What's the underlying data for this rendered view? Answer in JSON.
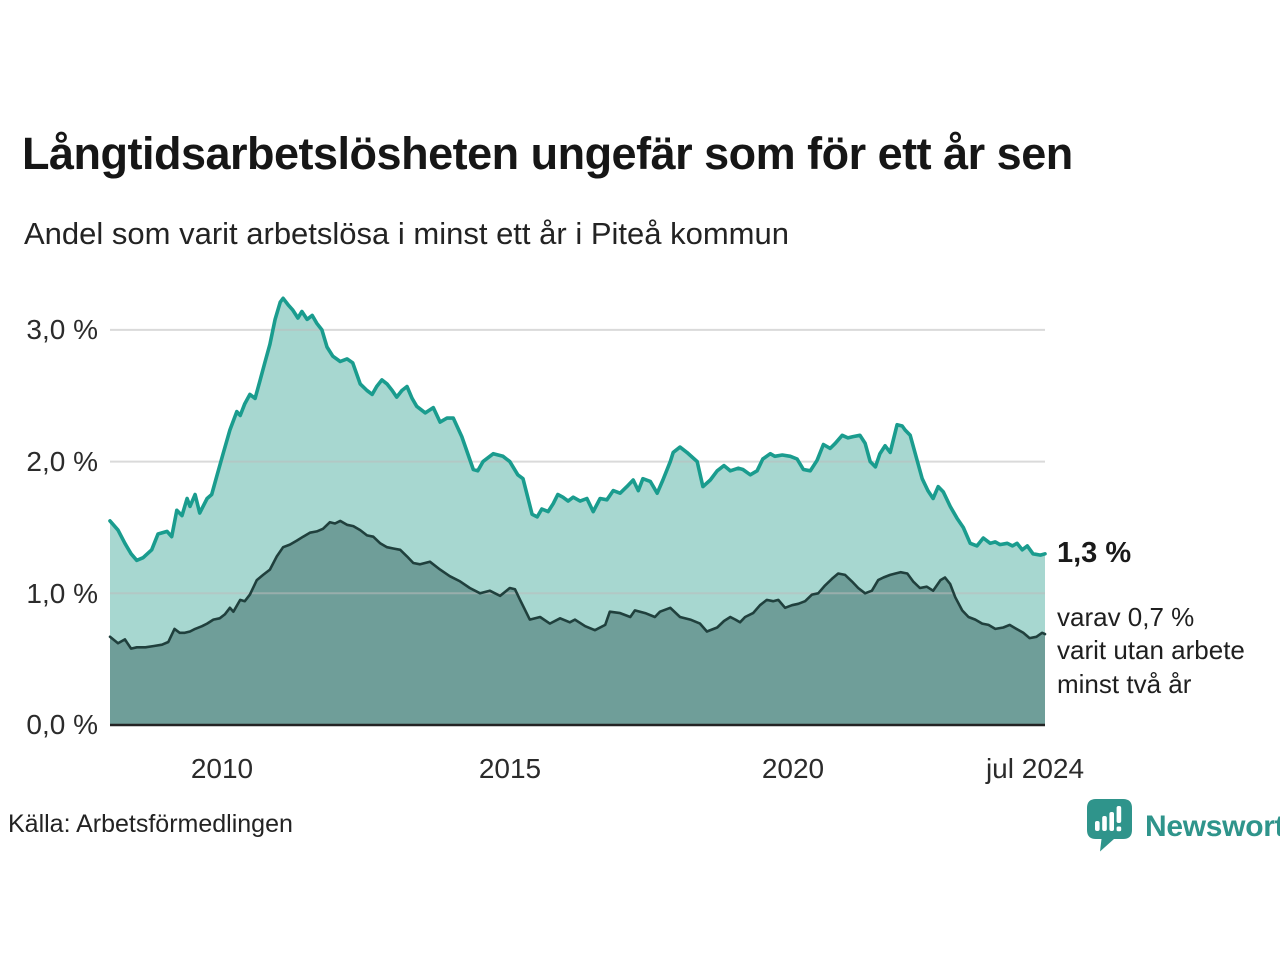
{
  "title": "Långtidsarbetslösheten ungefär som för ett år sen",
  "subtitle": "Andel som varit arbetslösa i minst ett år i Piteå kommun",
  "source": "Källa: Arbetsförmedlingen",
  "logo": {
    "text": "Newsworthy"
  },
  "annotation": {
    "value": "1,3 %",
    "line1": "varav 0,7 %",
    "line2": "varit utan arbete",
    "line3": "minst två år"
  },
  "colors": {
    "line_1yr": "#1a9c8e",
    "fill_1yr": "#a7d7d0",
    "line_2yr": "#20403d",
    "fill_2yr": "#6f9e99",
    "gridline": "#bbbbbb",
    "baseline": "#232323",
    "logo_teal": "#2f948b"
  },
  "chart_data": {
    "type": "area",
    "title": "Långtidsarbetslösheten ungefär som för ett år sen",
    "subtitle": "Andel som varit arbetslösa i minst ett år i Piteå kommun",
    "unit": "%",
    "x_axis": {
      "range": [
        2008.04,
        2024.41
      ],
      "ticks": [
        2010,
        2015,
        2020,
        2024.45
      ],
      "tick_labels": [
        "2010",
        "2015",
        "2020",
        "jul 2024"
      ]
    },
    "y_axis": {
      "range": [
        0,
        3.4
      ],
      "ticks": [
        0,
        1,
        2,
        3
      ],
      "tick_labels": [
        "0,0 %",
        "1,0 %",
        "2,0 %",
        "3,0 %"
      ],
      "grid": true
    },
    "annotations": {
      "last_value_1yr": "1,3 %",
      "last_value_2yr": "0,7 %"
    },
    "series": [
      {
        "name": "Andel arbetslösa minst ett år",
        "points": [
          [
            2008.04,
            1.55
          ],
          [
            2008.18,
            1.48
          ],
          [
            2008.3,
            1.38
          ],
          [
            2008.41,
            1.3
          ],
          [
            2008.51,
            1.25
          ],
          [
            2008.62,
            1.27
          ],
          [
            2008.77,
            1.33
          ],
          [
            2008.88,
            1.45
          ],
          [
            2009.04,
            1.47
          ],
          [
            2009.12,
            1.43
          ],
          [
            2009.21,
            1.63
          ],
          [
            2009.3,
            1.59
          ],
          [
            2009.39,
            1.72
          ],
          [
            2009.44,
            1.66
          ],
          [
            2009.53,
            1.75
          ],
          [
            2009.61,
            1.61
          ],
          [
            2009.74,
            1.72
          ],
          [
            2009.82,
            1.75
          ],
          [
            2009.91,
            1.89
          ],
          [
            2010.02,
            2.06
          ],
          [
            2010.14,
            2.24
          ],
          [
            2010.26,
            2.38
          ],
          [
            2010.32,
            2.35
          ],
          [
            2010.4,
            2.44
          ],
          [
            2010.49,
            2.51
          ],
          [
            2010.58,
            2.48
          ],
          [
            2010.67,
            2.62
          ],
          [
            2010.75,
            2.75
          ],
          [
            2010.84,
            2.89
          ],
          [
            2010.93,
            3.08
          ],
          [
            2011.02,
            3.21
          ],
          [
            2011.07,
            3.24
          ],
          [
            2011.16,
            3.19
          ],
          [
            2011.24,
            3.15
          ],
          [
            2011.33,
            3.09
          ],
          [
            2011.4,
            3.14
          ],
          [
            2011.49,
            3.08
          ],
          [
            2011.58,
            3.11
          ],
          [
            2011.66,
            3.05
          ],
          [
            2011.75,
            3.0
          ],
          [
            2011.84,
            2.87
          ],
          [
            2011.94,
            2.8
          ],
          [
            2012.07,
            2.76
          ],
          [
            2012.19,
            2.78
          ],
          [
            2012.29,
            2.75
          ],
          [
            2012.42,
            2.59
          ],
          [
            2012.54,
            2.54
          ],
          [
            2012.63,
            2.51
          ],
          [
            2012.71,
            2.57
          ],
          [
            2012.8,
            2.62
          ],
          [
            2012.89,
            2.59
          ],
          [
            2012.98,
            2.54
          ],
          [
            2013.06,
            2.49
          ],
          [
            2013.15,
            2.54
          ],
          [
            2013.24,
            2.57
          ],
          [
            2013.33,
            2.48
          ],
          [
            2013.41,
            2.42
          ],
          [
            2013.56,
            2.37
          ],
          [
            2013.7,
            2.41
          ],
          [
            2013.82,
            2.3
          ],
          [
            2013.94,
            2.33
          ],
          [
            2014.05,
            2.33
          ],
          [
            2014.2,
            2.19
          ],
          [
            2014.4,
            1.94
          ],
          [
            2014.48,
            1.93
          ],
          [
            2014.57,
            2.0
          ],
          [
            2014.75,
            2.06
          ],
          [
            2014.92,
            2.04
          ],
          [
            2015.04,
            2.0
          ],
          [
            2015.18,
            1.9
          ],
          [
            2015.27,
            1.87
          ],
          [
            2015.43,
            1.6
          ],
          [
            2015.52,
            1.58
          ],
          [
            2015.6,
            1.64
          ],
          [
            2015.71,
            1.62
          ],
          [
            2015.8,
            1.68
          ],
          [
            2015.88,
            1.75
          ],
          [
            2015.97,
            1.73
          ],
          [
            2016.06,
            1.7
          ],
          [
            2016.15,
            1.73
          ],
          [
            2016.27,
            1.7
          ],
          [
            2016.39,
            1.72
          ],
          [
            2016.5,
            1.62
          ],
          [
            2016.62,
            1.72
          ],
          [
            2016.74,
            1.71
          ],
          [
            2016.85,
            1.78
          ],
          [
            2016.97,
            1.76
          ],
          [
            2017.09,
            1.81
          ],
          [
            2017.2,
            1.86
          ],
          [
            2017.29,
            1.78
          ],
          [
            2017.37,
            1.87
          ],
          [
            2017.5,
            1.85
          ],
          [
            2017.62,
            1.76
          ],
          [
            2017.72,
            1.86
          ],
          [
            2017.85,
            2.0
          ],
          [
            2017.9,
            2.07
          ],
          [
            2018.02,
            2.11
          ],
          [
            2018.14,
            2.07
          ],
          [
            2018.32,
            2.0
          ],
          [
            2018.42,
            1.81
          ],
          [
            2018.55,
            1.86
          ],
          [
            2018.67,
            1.93
          ],
          [
            2018.79,
            1.97
          ],
          [
            2018.9,
            1.93
          ],
          [
            2019.04,
            1.95
          ],
          [
            2019.12,
            1.94
          ],
          [
            2019.25,
            1.9
          ],
          [
            2019.37,
            1.93
          ],
          [
            2019.47,
            2.02
          ],
          [
            2019.6,
            2.06
          ],
          [
            2019.68,
            2.04
          ],
          [
            2019.81,
            2.05
          ],
          [
            2019.95,
            2.04
          ],
          [
            2020.07,
            2.02
          ],
          [
            2020.18,
            1.94
          ],
          [
            2020.3,
            1.93
          ],
          [
            2020.42,
            2.01
          ],
          [
            2020.53,
            2.13
          ],
          [
            2020.65,
            2.1
          ],
          [
            2020.74,
            2.14
          ],
          [
            2020.86,
            2.2
          ],
          [
            2020.96,
            2.18
          ],
          [
            2021.05,
            2.19
          ],
          [
            2021.17,
            2.2
          ],
          [
            2021.26,
            2.14
          ],
          [
            2021.35,
            2.0
          ],
          [
            2021.44,
            1.96
          ],
          [
            2021.52,
            2.06
          ],
          [
            2021.61,
            2.12
          ],
          [
            2021.7,
            2.07
          ],
          [
            2021.82,
            2.28
          ],
          [
            2021.91,
            2.27
          ],
          [
            2021.96,
            2.24
          ],
          [
            2022.05,
            2.2
          ],
          [
            2022.17,
            2.01
          ],
          [
            2022.26,
            1.87
          ],
          [
            2022.36,
            1.78
          ],
          [
            2022.45,
            1.72
          ],
          [
            2022.54,
            1.81
          ],
          [
            2022.63,
            1.77
          ],
          [
            2022.75,
            1.66
          ],
          [
            2022.87,
            1.57
          ],
          [
            2022.98,
            1.5
          ],
          [
            2023.1,
            1.38
          ],
          [
            2023.22,
            1.36
          ],
          [
            2023.33,
            1.42
          ],
          [
            2023.45,
            1.38
          ],
          [
            2023.54,
            1.39
          ],
          [
            2023.62,
            1.37
          ],
          [
            2023.75,
            1.38
          ],
          [
            2023.84,
            1.36
          ],
          [
            2023.92,
            1.38
          ],
          [
            2024.01,
            1.33
          ],
          [
            2024.1,
            1.36
          ],
          [
            2024.2,
            1.3
          ],
          [
            2024.33,
            1.29
          ],
          [
            2024.41,
            1.3
          ]
        ]
      },
      {
        "name": "varav utan arbete minst två år",
        "points": [
          [
            2008.04,
            0.67
          ],
          [
            2008.18,
            0.62
          ],
          [
            2008.3,
            0.65
          ],
          [
            2008.41,
            0.58
          ],
          [
            2008.51,
            0.59
          ],
          [
            2008.66,
            0.59
          ],
          [
            2008.81,
            0.6
          ],
          [
            2008.95,
            0.61
          ],
          [
            2009.06,
            0.63
          ],
          [
            2009.17,
            0.73
          ],
          [
            2009.26,
            0.7
          ],
          [
            2009.35,
            0.7
          ],
          [
            2009.44,
            0.71
          ],
          [
            2009.53,
            0.73
          ],
          [
            2009.65,
            0.75
          ],
          [
            2009.74,
            0.77
          ],
          [
            2009.85,
            0.8
          ],
          [
            2009.96,
            0.81
          ],
          [
            2010.05,
            0.84
          ],
          [
            2010.14,
            0.89
          ],
          [
            2010.2,
            0.86
          ],
          [
            2010.32,
            0.95
          ],
          [
            2010.4,
            0.94
          ],
          [
            2010.49,
            0.99
          ],
          [
            2010.61,
            1.1
          ],
          [
            2010.72,
            1.14
          ],
          [
            2010.84,
            1.18
          ],
          [
            2010.96,
            1.28
          ],
          [
            2011.07,
            1.35
          ],
          [
            2011.19,
            1.37
          ],
          [
            2011.31,
            1.4
          ],
          [
            2011.42,
            1.43
          ],
          [
            2011.54,
            1.46
          ],
          [
            2011.66,
            1.47
          ],
          [
            2011.77,
            1.49
          ],
          [
            2011.89,
            1.54
          ],
          [
            2011.98,
            1.53
          ],
          [
            2012.07,
            1.55
          ],
          [
            2012.19,
            1.52
          ],
          [
            2012.3,
            1.51
          ],
          [
            2012.42,
            1.48
          ],
          [
            2012.54,
            1.44
          ],
          [
            2012.65,
            1.43
          ],
          [
            2012.77,
            1.38
          ],
          [
            2012.89,
            1.35
          ],
          [
            2013.0,
            1.34
          ],
          [
            2013.12,
            1.33
          ],
          [
            2013.24,
            1.28
          ],
          [
            2013.35,
            1.23
          ],
          [
            2013.47,
            1.22
          ],
          [
            2013.64,
            1.24
          ],
          [
            2013.82,
            1.18
          ],
          [
            2013.99,
            1.13
          ],
          [
            2014.17,
            1.09
          ],
          [
            2014.34,
            1.04
          ],
          [
            2014.52,
            1.0
          ],
          [
            2014.69,
            1.02
          ],
          [
            2014.87,
            0.98
          ],
          [
            2015.04,
            1.04
          ],
          [
            2015.13,
            1.03
          ],
          [
            2015.22,
            0.95
          ],
          [
            2015.39,
            0.8
          ],
          [
            2015.57,
            0.82
          ],
          [
            2015.74,
            0.77
          ],
          [
            2015.92,
            0.81
          ],
          [
            2016.09,
            0.78
          ],
          [
            2016.18,
            0.8
          ],
          [
            2016.36,
            0.75
          ],
          [
            2016.53,
            0.72
          ],
          [
            2016.71,
            0.76
          ],
          [
            2016.79,
            0.86
          ],
          [
            2016.97,
            0.85
          ],
          [
            2017.15,
            0.82
          ],
          [
            2017.23,
            0.87
          ],
          [
            2017.41,
            0.85
          ],
          [
            2017.58,
            0.82
          ],
          [
            2017.67,
            0.86
          ],
          [
            2017.85,
            0.89
          ],
          [
            2018.02,
            0.82
          ],
          [
            2018.2,
            0.8
          ],
          [
            2018.37,
            0.77
          ],
          [
            2018.49,
            0.71
          ],
          [
            2018.67,
            0.74
          ],
          [
            2018.79,
            0.79
          ],
          [
            2018.9,
            0.82
          ],
          [
            2018.99,
            0.8
          ],
          [
            2019.07,
            0.78
          ],
          [
            2019.16,
            0.82
          ],
          [
            2019.3,
            0.85
          ],
          [
            2019.42,
            0.91
          ],
          [
            2019.54,
            0.95
          ],
          [
            2019.65,
            0.94
          ],
          [
            2019.74,
            0.95
          ],
          [
            2019.86,
            0.89
          ],
          [
            2019.98,
            0.91
          ],
          [
            2020.09,
            0.92
          ],
          [
            2020.21,
            0.94
          ],
          [
            2020.33,
            0.99
          ],
          [
            2020.44,
            1.0
          ],
          [
            2020.56,
            1.06
          ],
          [
            2020.68,
            1.11
          ],
          [
            2020.79,
            1.15
          ],
          [
            2020.91,
            1.14
          ],
          [
            2021.03,
            1.09
          ],
          [
            2021.14,
            1.04
          ],
          [
            2021.26,
            1.0
          ],
          [
            2021.38,
            1.02
          ],
          [
            2021.49,
            1.1
          ],
          [
            2021.58,
            1.12
          ],
          [
            2021.7,
            1.14
          ],
          [
            2021.79,
            1.15
          ],
          [
            2021.88,
            1.16
          ],
          [
            2022.0,
            1.15
          ],
          [
            2022.1,
            1.09
          ],
          [
            2022.22,
            1.04
          ],
          [
            2022.34,
            1.05
          ],
          [
            2022.45,
            1.02
          ],
          [
            2022.58,
            1.1
          ],
          [
            2022.66,
            1.12
          ],
          [
            2022.75,
            1.07
          ],
          [
            2022.84,
            0.97
          ],
          [
            2022.96,
            0.87
          ],
          [
            2023.07,
            0.82
          ],
          [
            2023.19,
            0.8
          ],
          [
            2023.31,
            0.77
          ],
          [
            2023.42,
            0.76
          ],
          [
            2023.54,
            0.73
          ],
          [
            2023.68,
            0.74
          ],
          [
            2023.79,
            0.76
          ],
          [
            2023.91,
            0.73
          ],
          [
            2024.03,
            0.7
          ],
          [
            2024.14,
            0.66
          ],
          [
            2024.26,
            0.67
          ],
          [
            2024.36,
            0.7
          ],
          [
            2024.41,
            0.69
          ]
        ]
      }
    ]
  }
}
